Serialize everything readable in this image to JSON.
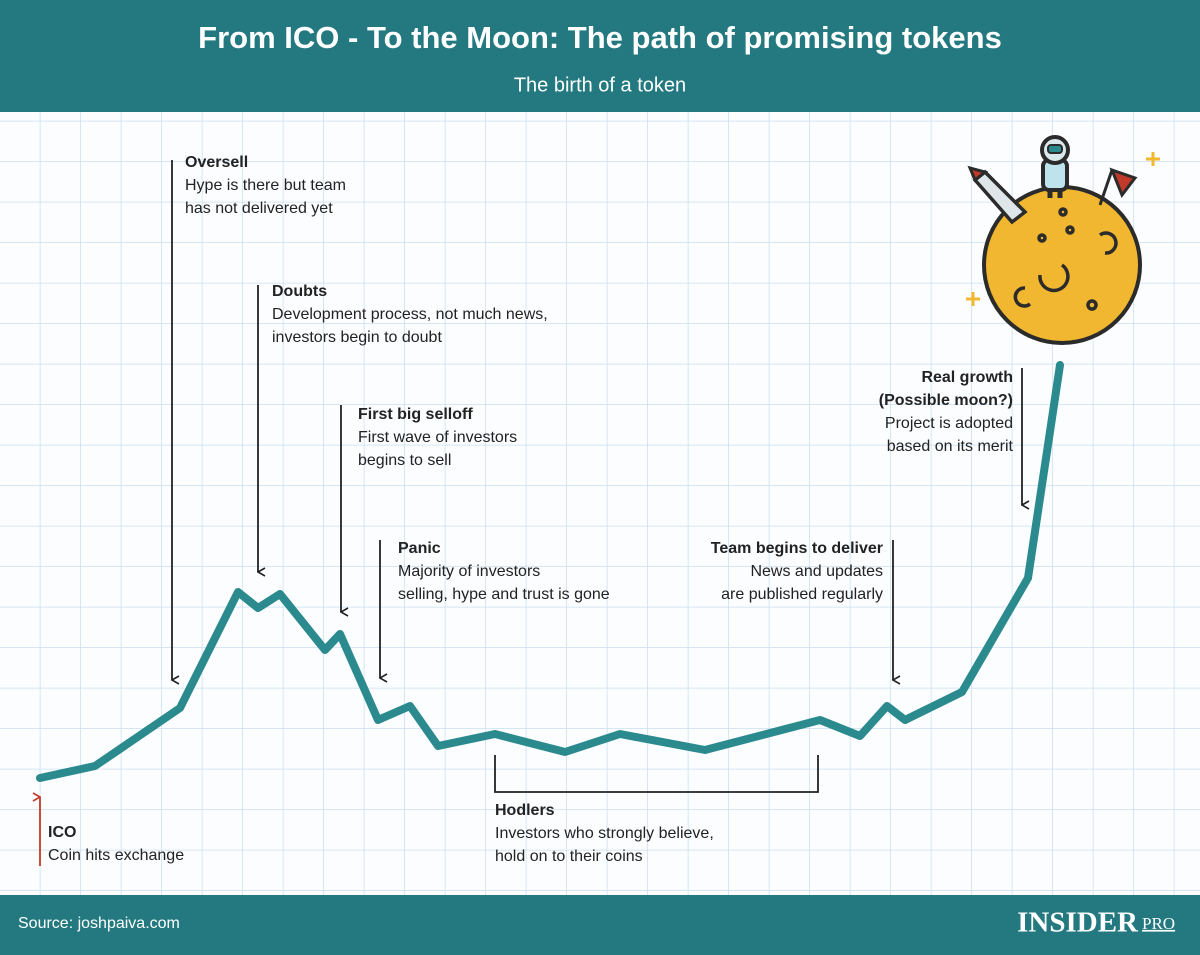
{
  "header": {
    "title": "From ICO - To the Moon: The path of promising tokens",
    "subtitle": "The birth of a token"
  },
  "annotations": [
    {
      "heading": [
        "Oversell"
      ],
      "text": [
        "Hype is there but team",
        "has not delivered yet"
      ]
    },
    {
      "heading": [
        "Doubts"
      ],
      "text": [
        "Development process, not much news,",
        "investors begin to doubt"
      ]
    },
    {
      "heading": [
        "First big selloff"
      ],
      "text": [
        "First wave of investors",
        "begins to sell"
      ]
    },
    {
      "heading": [
        "Panic"
      ],
      "text": [
        "Majority of investors",
        "selling, hype and trust is gone"
      ]
    },
    {
      "heading": [
        "Team begins to deliver"
      ],
      "text": [
        "News and updates",
        "are published regularly"
      ]
    },
    {
      "heading": [
        "Real growth",
        "(Possible moon?)"
      ],
      "text": [
        "Project is adopted",
        "based on its merit"
      ]
    },
    {
      "heading": [
        "Hodlers"
      ],
      "text": [
        "Investors who strongly believe,",
        "hold on to their coins"
      ]
    },
    {
      "heading": [
        "ICO"
      ],
      "text": [
        "Coin hits exchange"
      ]
    }
  ],
  "footer": {
    "source": "Source: joshpaiva.com",
    "brand": "INSIDER",
    "brand_suffix": "PRO"
  }
}
